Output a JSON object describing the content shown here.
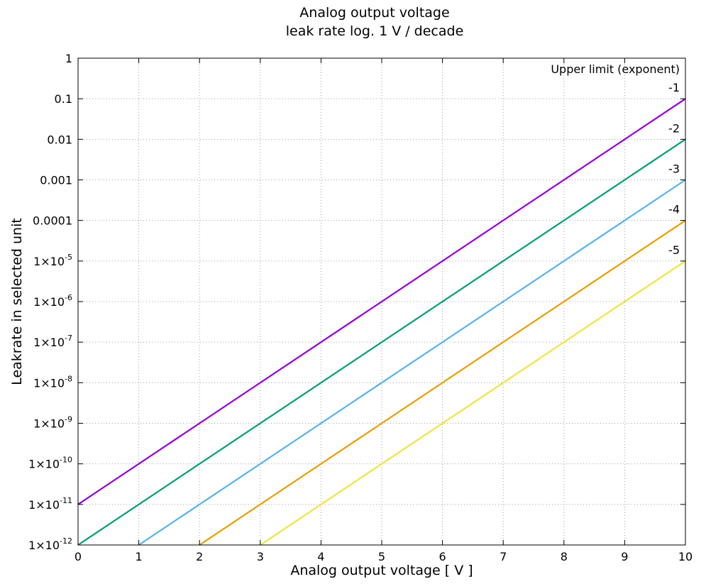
{
  "chart_data": {
    "type": "line",
    "title": [
      "Analog output voltage",
      "leak rate log. 1 V / decade"
    ],
    "xlabel": "Analog output voltage [ V ]",
    "ylabel": "Leakrate in selected unit",
    "xlim": [
      0,
      10
    ],
    "ylim": [
      1e-12,
      1
    ],
    "y_scale": "log",
    "grid": true,
    "legend_title": "Upper limit (exponent)",
    "legend_placement": "right",
    "x_ticks": [
      "0",
      "1",
      "2",
      "3",
      "4",
      "5",
      "6",
      "7",
      "8",
      "9",
      "10"
    ],
    "y_ticks": [
      {
        "value": 1,
        "mantissa": "1",
        "exponent": ""
      },
      {
        "value": 0.1,
        "mantissa": "0.1",
        "exponent": ""
      },
      {
        "value": 0.01,
        "mantissa": "0.01",
        "exponent": ""
      },
      {
        "value": 0.001,
        "mantissa": "0.001",
        "exponent": ""
      },
      {
        "value": 0.0001,
        "mantissa": "0.0001",
        "exponent": ""
      },
      {
        "value": 1e-05,
        "mantissa": "1×10",
        "exponent": "-5"
      },
      {
        "value": 1e-06,
        "mantissa": "1×10",
        "exponent": "-6"
      },
      {
        "value": 1e-07,
        "mantissa": "1×10",
        "exponent": "-7"
      },
      {
        "value": 1e-08,
        "mantissa": "1×10",
        "exponent": "-8"
      },
      {
        "value": 1e-09,
        "mantissa": "1×10",
        "exponent": "-9"
      },
      {
        "value": 1e-10,
        "mantissa": "1×10",
        "exponent": "-10"
      },
      {
        "value": 1e-11,
        "mantissa": "1×10",
        "exponent": "-11"
      },
      {
        "value": 1e-12,
        "mantissa": "1×10",
        "exponent": "-12"
      }
    ],
    "series": [
      {
        "name": "-1",
        "color": "#9400d3",
        "x": [
          0,
          10
        ],
        "y": [
          1e-11,
          0.1
        ]
      },
      {
        "name": "-2",
        "color": "#009e73",
        "x": [
          0,
          10
        ],
        "y": [
          1e-12,
          0.01
        ]
      },
      {
        "name": "-3",
        "color": "#56b4e9",
        "x": [
          1,
          10
        ],
        "y": [
          1e-12,
          0.001
        ]
      },
      {
        "name": "-4",
        "color": "#e69f00",
        "x": [
          2,
          10
        ],
        "y": [
          1e-12,
          0.0001
        ]
      },
      {
        "name": "-5",
        "color": "#f0e442",
        "x": [
          3,
          10
        ],
        "y": [
          1e-12,
          1e-05
        ]
      }
    ]
  }
}
